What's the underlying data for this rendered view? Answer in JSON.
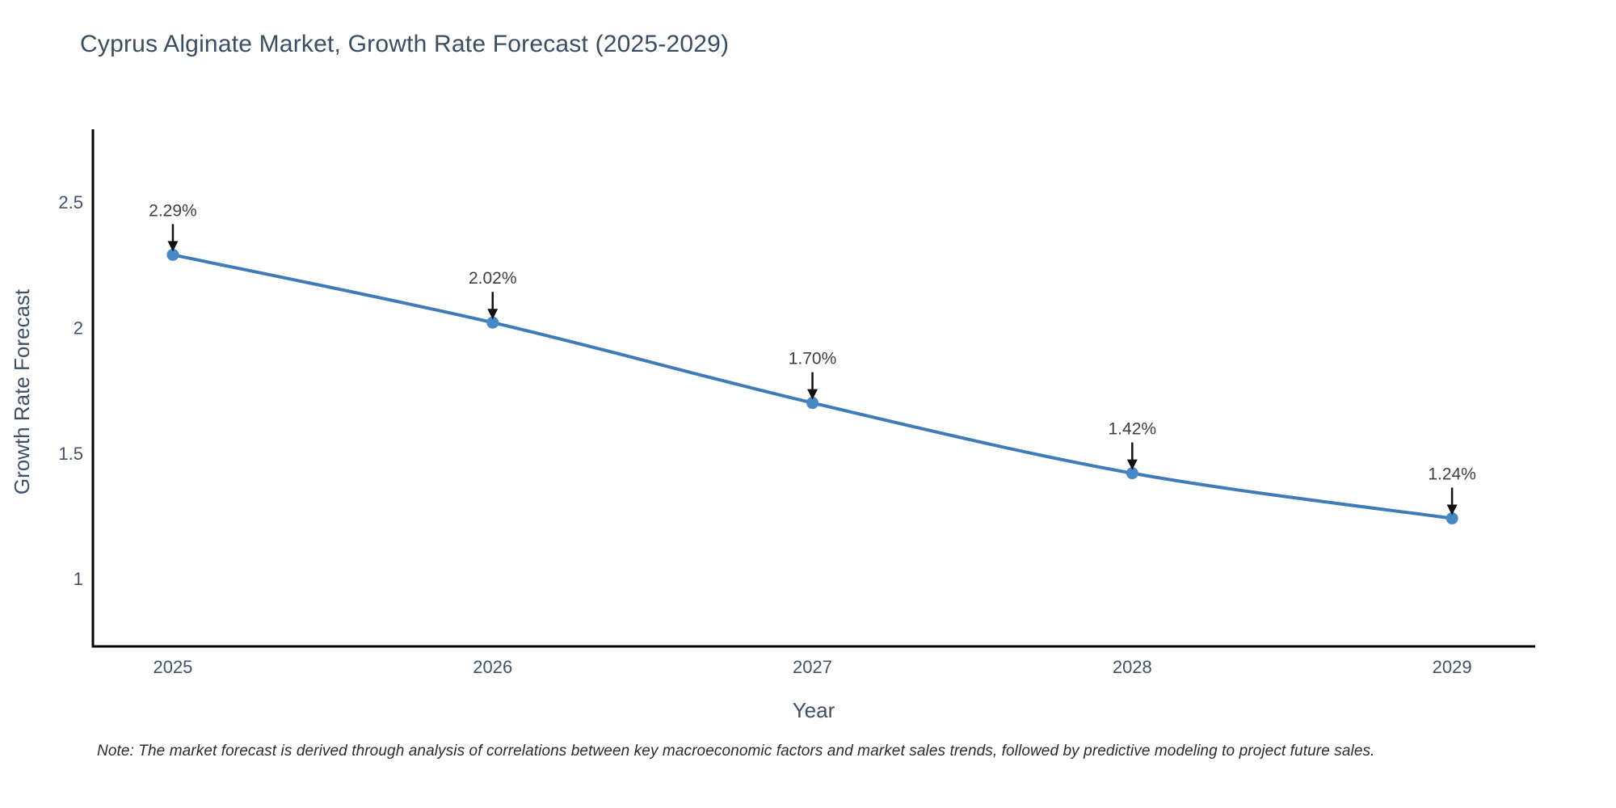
{
  "page": {
    "note": "Note: The market forecast is derived through analysis of correlations between key macroeconomic factors and market sales trends, followed by predictive modeling to project future sales."
  },
  "chart_data": {
    "type": "line",
    "title": "Cyprus Alginate Market, Growth Rate Forecast (2025-2029)",
    "xlabel": "Year",
    "ylabel": "Growth Rate Forecast",
    "x": [
      2025,
      2026,
      2027,
      2028,
      2029
    ],
    "values": [
      2.29,
      2.02,
      1.7,
      1.42,
      1.24
    ],
    "point_labels": [
      "2.29%",
      "2.02%",
      "1.70%",
      "1.42%",
      "1.24%"
    ],
    "xticks": [
      2025,
      2026,
      2027,
      2028,
      2029
    ],
    "xtick_labels": [
      "2025",
      "2026",
      "2027",
      "2028",
      "2029"
    ],
    "yticks": [
      1,
      1.5,
      2,
      2.5
    ],
    "ytick_labels": [
      "1",
      "1.5",
      "2",
      "2.5"
    ],
    "xlim": [
      2024.75,
      2029.26
    ],
    "ylim": [
      0.73,
      2.79
    ],
    "grid": false,
    "legend": "none",
    "line_shape": "spline",
    "marker": "circle",
    "annotation_arrows": true,
    "colors": {
      "line": "#3f7bb6",
      "marker": "#4689c6",
      "arrow": "#111111",
      "axis": "#000000",
      "heading_text": "#3b4d63",
      "axis_title_text": "#3e5066",
      "tick_text": "#42526a",
      "point_label_text": "#3f3f3f",
      "note_text": "#2b2b2b",
      "background": "#ffffff"
    }
  }
}
